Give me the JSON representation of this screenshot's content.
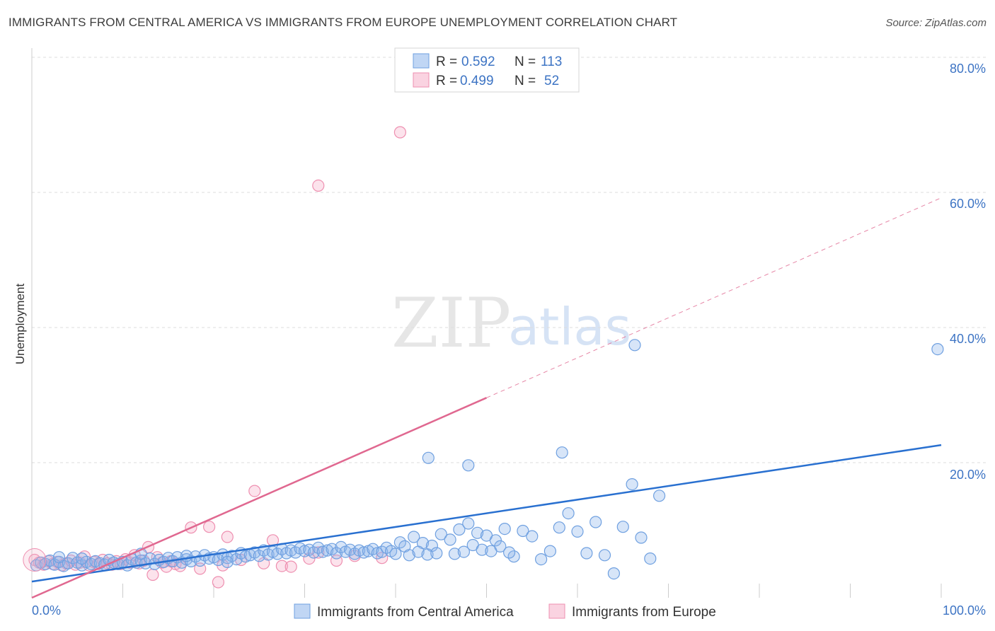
{
  "title": "IMMIGRANTS FROM CENTRAL AMERICA VS IMMIGRANTS FROM EUROPE UNEMPLOYMENT CORRELATION CHART",
  "source": "Source: ZipAtlas.com",
  "watermark": {
    "zip": "ZIP",
    "atlas": "atlas"
  },
  "colors": {
    "blue": "#6fa0e0",
    "blue_fill": "rgba(140,180,235,0.35)",
    "blue_line": "#2970d0",
    "pink": "#ee8fb0",
    "pink_fill": "rgba(245,175,200,0.35)",
    "pink_line": "#e06890",
    "tick": "#3d74c4",
    "grid": "#dddddd"
  },
  "legend": {
    "rows": [
      {
        "r_label": "R =",
        "r_value": "0.592",
        "n_label": "N =",
        "n_value": "113"
      },
      {
        "r_label": "R =",
        "r_value": "0.499",
        "n_label": "N =",
        "n_value": "52"
      }
    ]
  },
  "bottom_legend": [
    "Immigrants from Central America",
    "Immigrants from Europe"
  ],
  "chart_data": {
    "type": "scatter",
    "title": "IMMIGRANTS FROM CENTRAL AMERICA VS IMMIGRANTS FROM EUROPE UNEMPLOYMENT CORRELATION CHART",
    "xlabel": "",
    "ylabel": "Unemployment",
    "xlim": [
      0,
      100
    ],
    "ylim": [
      0,
      85
    ],
    "x_tick_labels": [
      "0.0%",
      "100.0%"
    ],
    "y_ticks": [
      20,
      40,
      60,
      80
    ],
    "y_tick_labels": [
      "20.0%",
      "40.0%",
      "60.0%",
      "80.0%"
    ],
    "grid": true,
    "legend_position": "top-center",
    "series": [
      {
        "name": "Immigrants from Central America",
        "r": 0.592,
        "n": 113,
        "trend": {
          "x0": 0,
          "y0": 2.4,
          "x1": 100,
          "y1": 22.6,
          "solid_until": 100
        },
        "points": [
          [
            0.5,
            4.8
          ],
          [
            1,
            5.2
          ],
          [
            1.5,
            5.0
          ],
          [
            2,
            5.5
          ],
          [
            2.5,
            4.9
          ],
          [
            3,
            5.3
          ],
          [
            3.5,
            4.7
          ],
          [
            4,
            5.1
          ],
          [
            4.5,
            5.9
          ],
          [
            5,
            5.2
          ],
          [
            5.5,
            4.8
          ],
          [
            6,
            5.3
          ],
          [
            6.5,
            5.0
          ],
          [
            7,
            5.4
          ],
          [
            7.5,
            5.1
          ],
          [
            8,
            4.9
          ],
          [
            8.5,
            5.6
          ],
          [
            9,
            5.2
          ],
          [
            9.5,
            5.0
          ],
          [
            10,
            5.3
          ],
          [
            10.5,
            4.8
          ],
          [
            11,
            5.7
          ],
          [
            11.5,
            5.2
          ],
          [
            12,
            5.5
          ],
          [
            12.5,
            5.1
          ],
          [
            13,
            5.8
          ],
          [
            13.5,
            5.0
          ],
          [
            14,
            5.6
          ],
          [
            14.5,
            5.3
          ],
          [
            15,
            5.9
          ],
          [
            15.5,
            5.4
          ],
          [
            16,
            6.0
          ],
          [
            16.5,
            5.2
          ],
          [
            17,
            5.7
          ],
          [
            17.5,
            5.4
          ],
          [
            18,
            6.1
          ],
          [
            18.5,
            5.5
          ],
          [
            19,
            6.3
          ],
          [
            19.5,
            5.8
          ],
          [
            20,
            6.0
          ],
          [
            20.5,
            5.6
          ],
          [
            21,
            6.4
          ],
          [
            21.5,
            5.9
          ],
          [
            22,
            6.2
          ],
          [
            22.5,
            5.7
          ],
          [
            23,
            6.6
          ],
          [
            23.5,
            6.1
          ],
          [
            24,
            6.3
          ],
          [
            24.5,
            6.7
          ],
          [
            25,
            6.2
          ],
          [
            25.5,
            7.0
          ],
          [
            26,
            6.4
          ],
          [
            26.5,
            6.8
          ],
          [
            27,
            6.5
          ],
          [
            27.5,
            7.2
          ],
          [
            28,
            6.6
          ],
          [
            28.5,
            7.0
          ],
          [
            29,
            6.7
          ],
          [
            29.5,
            7.3
          ],
          [
            30,
            6.9
          ],
          [
            30.5,
            7.1
          ],
          [
            31,
            6.7
          ],
          [
            31.5,
            7.4
          ],
          [
            32,
            6.8
          ],
          [
            32.5,
            7.0
          ],
          [
            33,
            7.2
          ],
          [
            33.5,
            6.6
          ],
          [
            34,
            7.5
          ],
          [
            34.5,
            6.8
          ],
          [
            35,
            7.1
          ],
          [
            35.5,
            6.5
          ],
          [
            36,
            7.0
          ],
          [
            36.5,
            6.7
          ],
          [
            37,
            6.9
          ],
          [
            37.5,
            7.2
          ],
          [
            38,
            6.6
          ],
          [
            38.5,
            6.8
          ],
          [
            39,
            7.4
          ],
          [
            39.5,
            6.9
          ],
          [
            40,
            6.5
          ],
          [
            40.5,
            8.2
          ],
          [
            41,
            7.6
          ],
          [
            42,
            9.0
          ],
          [
            43,
            8.1
          ],
          [
            44,
            7.7
          ],
          [
            45,
            9.4
          ],
          [
            46,
            8.6
          ],
          [
            47,
            10.1
          ],
          [
            48,
            11.0
          ],
          [
            49,
            9.6
          ],
          [
            50,
            9.2
          ],
          [
            51,
            8.5
          ],
          [
            52,
            10.2
          ],
          [
            53,
            6.1
          ],
          [
            54,
            9.9
          ],
          [
            55,
            9.1
          ],
          [
            56,
            5.7
          ],
          [
            57,
            6.9
          ],
          [
            58,
            10.4
          ],
          [
            59,
            12.5
          ],
          [
            60,
            9.8
          ],
          [
            61,
            6.6
          ],
          [
            62,
            11.2
          ],
          [
            63,
            6.3
          ],
          [
            64,
            3.6
          ],
          [
            65,
            10.5
          ],
          [
            66,
            16.8
          ],
          [
            67,
            8.9
          ],
          [
            68,
            5.8
          ],
          [
            69,
            15.1
          ],
          [
            21.5,
            5.3
          ],
          [
            12,
            6.5
          ],
          [
            5.5,
            5.8
          ],
          [
            17,
            6.2
          ],
          [
            41.5,
            6.3
          ],
          [
            42.5,
            6.8
          ],
          [
            43.5,
            6.4
          ],
          [
            44.5,
            6.6
          ],
          [
            3,
            6.0
          ],
          [
            46.5,
            6.5
          ],
          [
            47.5,
            6.8
          ],
          [
            48.5,
            7.8
          ],
          [
            49.5,
            7.1
          ],
          [
            50.5,
            6.9
          ],
          [
            51.5,
            7.6
          ],
          [
            52.5,
            6.7
          ],
          [
            99.6,
            36.8
          ],
          [
            66.3,
            37.4
          ],
          [
            43.6,
            20.7
          ],
          [
            48,
            19.6
          ],
          [
            58.3,
            21.5
          ]
        ]
      },
      {
        "name": "Immigrants from Europe",
        "r": 0.499,
        "n": 52,
        "trend": {
          "x0": 0,
          "y0": 0.0,
          "x1": 100,
          "y1": 59.2,
          "solid_until": 50
        },
        "points": [
          [
            0.3,
            5.6
          ],
          [
            0.8,
            5.2
          ],
          [
            1.3,
            4.9
          ],
          [
            1.8,
            5.4
          ],
          [
            2.3,
            5.0
          ],
          [
            2.8,
            5.3
          ],
          [
            3.3,
            4.8
          ],
          [
            3.8,
            5.1
          ],
          [
            4.3,
            5.5
          ],
          [
            4.8,
            4.9
          ],
          [
            5.3,
            5.2
          ],
          [
            5.8,
            6.1
          ],
          [
            6.3,
            4.8
          ],
          [
            6.8,
            5.3
          ],
          [
            7.3,
            5.0
          ],
          [
            7.8,
            5.6
          ],
          [
            8.3,
            5.1
          ],
          [
            8.8,
            4.9
          ],
          [
            9.3,
            5.4
          ],
          [
            9.8,
            5.0
          ],
          [
            10.3,
            5.7
          ],
          [
            10.8,
            5.2
          ],
          [
            11.3,
            6.3
          ],
          [
            11.8,
            5.1
          ],
          [
            12.3,
            5.5
          ],
          [
            12.8,
            7.5
          ],
          [
            13.3,
            3.4
          ],
          [
            13.8,
            6.0
          ],
          [
            14.3,
            5.2
          ],
          [
            14.8,
            4.6
          ],
          [
            15.3,
            5.4
          ],
          [
            15.8,
            5.0
          ],
          [
            16.3,
            4.7
          ],
          [
            17.5,
            10.4
          ],
          [
            18.5,
            4.3
          ],
          [
            19.5,
            10.5
          ],
          [
            20.5,
            2.3
          ],
          [
            21.5,
            9.0
          ],
          [
            21,
            4.8
          ],
          [
            23,
            5.6
          ],
          [
            24.5,
            15.8
          ],
          [
            25.5,
            5.1
          ],
          [
            26.5,
            8.5
          ],
          [
            27.5,
            4.7
          ],
          [
            28.5,
            4.6
          ],
          [
            30.5,
            5.8
          ],
          [
            31.5,
            6.7
          ],
          [
            33.5,
            5.5
          ],
          [
            35.5,
            6.2
          ],
          [
            38.5,
            5.9
          ],
          [
            31.5,
            61.0
          ],
          [
            40.5,
            68.9
          ]
        ]
      }
    ]
  }
}
